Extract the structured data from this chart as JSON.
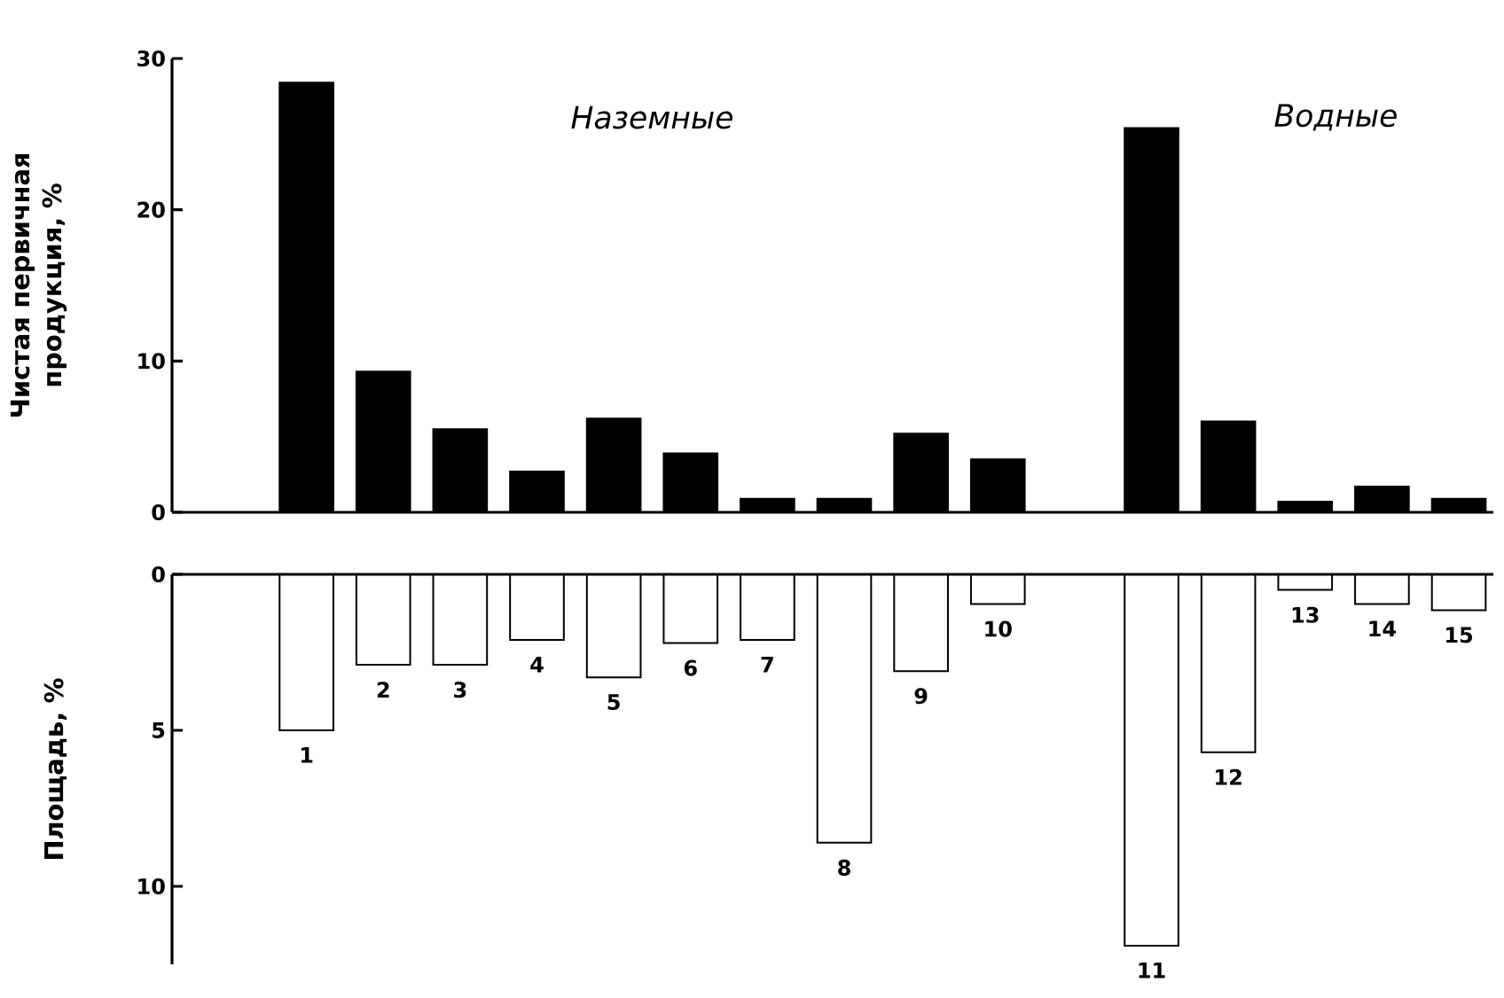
{
  "chart_data": [
    {
      "type": "bar",
      "categories": [
        "1",
        "2",
        "3",
        "4",
        "5",
        "6",
        "7",
        "8",
        "9",
        "10",
        null,
        "11",
        "12",
        "13",
        "14",
        "15"
      ],
      "values": [
        28.4,
        9.3,
        5.5,
        2.7,
        6.2,
        3.9,
        0.9,
        0.9,
        5.2,
        3.5,
        null,
        25.4,
        6.0,
        0.7,
        1.7,
        0.9
      ],
      "color": "#000000",
      "ylim": [
        0,
        30
      ],
      "yticks": [
        0,
        10,
        20,
        30
      ],
      "ylabel": "Чистая первичная продукция, %",
      "annotations": [
        "Наземные",
        "Водные"
      ],
      "tick_labels": "y"
    },
    {
      "type": "bar",
      "categories": [
        "1",
        "2",
        "3",
        "4",
        "5",
        "6",
        "7",
        "8",
        "9",
        "10",
        null,
        "11",
        "12",
        "13",
        "14",
        "15"
      ],
      "values": [
        5.0,
        2.9,
        2.9,
        2.1,
        3.3,
        2.2,
        2.1,
        8.6,
        3.1,
        0.95,
        null,
        11.9,
        5.7,
        0.5,
        0.95,
        1.15
      ],
      "color": "#ffffff",
      "ylim": [
        12.5,
        0
      ],
      "yticks": [
        0,
        5,
        10
      ],
      "ylabel": "Площадь, %"
    }
  ]
}
